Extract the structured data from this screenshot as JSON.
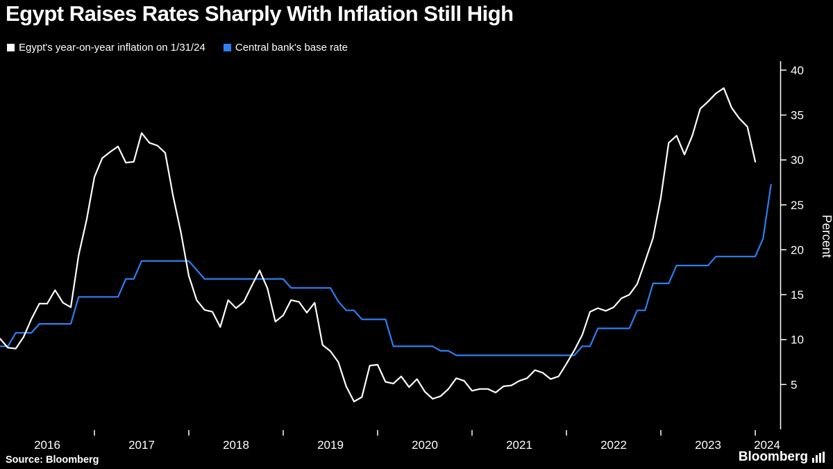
{
  "title": "Egypt Raises Rates Sharply With Inflation Still High",
  "source_label": "Source: Bloomberg",
  "brand_label": "Bloomberg",
  "colors": {
    "background": "#000000",
    "text": "#ffffff",
    "inflation_line": "#ffffff",
    "base_rate_line": "#2d7ff2"
  },
  "chart_data": {
    "type": "line",
    "title": "Egypt Raises Rates Sharply With Inflation Still High",
    "xlabel": "",
    "ylabel": "Percent",
    "xlim": [
      2016,
      2024.25
    ],
    "ylim": [
      0,
      41
    ],
    "y_ticks": [
      5,
      10,
      15,
      20,
      25,
      30,
      35,
      40
    ],
    "x_ticks": [
      2016,
      2017,
      2018,
      2019,
      2020,
      2021,
      2022,
      2023,
      2024
    ],
    "grid": false,
    "legend_position": "top-left",
    "series": [
      {
        "name": "Egypt's year-on-year inflation on 1/31/24",
        "color": "#ffffff",
        "start_year": 2016,
        "start_month": 1,
        "frequency": "monthly",
        "values": [
          10.1,
          9.1,
          9.0,
          10.3,
          12.3,
          14.0,
          14.0,
          15.5,
          14.1,
          13.6,
          19.4,
          23.3,
          28.1,
          30.2,
          30.9,
          31.5,
          29.7,
          29.8,
          33.0,
          31.9,
          31.6,
          30.8,
          26.0,
          21.9,
          17.1,
          14.4,
          13.3,
          13.1,
          11.4,
          14.4,
          13.5,
          14.2,
          16.0,
          17.7,
          15.7,
          12.0,
          12.7,
          14.4,
          14.2,
          13.0,
          14.1,
          9.4,
          8.7,
          7.5,
          4.8,
          3.1,
          3.6,
          7.1,
          7.2,
          5.3,
          5.1,
          5.9,
          4.7,
          5.6,
          4.2,
          3.4,
          3.7,
          4.5,
          5.7,
          5.4,
          4.3,
          4.5,
          4.5,
          4.1,
          4.8,
          4.9,
          5.4,
          5.7,
          6.6,
          6.3,
          5.6,
          5.9,
          7.3,
          8.8,
          10.5,
          13.1,
          13.5,
          13.2,
          13.6,
          14.6,
          15.0,
          16.2,
          18.7,
          21.3,
          25.8,
          31.9,
          32.7,
          30.6,
          32.7,
          35.7,
          36.5,
          37.4,
          38.0,
          35.8,
          34.6,
          33.7,
          29.8
        ]
      },
      {
        "name": "Central bank's base rate",
        "color": "#2d7ff2",
        "start_year": 2016,
        "start_month": 1,
        "frequency": "monthly",
        "values": [
          9.25,
          9.25,
          10.75,
          10.75,
          10.75,
          11.75,
          11.75,
          11.75,
          11.75,
          11.75,
          14.75,
          14.75,
          14.75,
          14.75,
          14.75,
          14.75,
          16.75,
          16.75,
          18.75,
          18.75,
          18.75,
          18.75,
          18.75,
          18.75,
          18.75,
          17.75,
          16.75,
          16.75,
          16.75,
          16.75,
          16.75,
          16.75,
          16.75,
          16.75,
          16.75,
          16.75,
          16.75,
          15.75,
          15.75,
          15.75,
          15.75,
          15.75,
          15.75,
          14.25,
          13.25,
          13.25,
          12.25,
          12.25,
          12.25,
          12.25,
          9.25,
          9.25,
          9.25,
          9.25,
          9.25,
          9.25,
          8.75,
          8.75,
          8.25,
          8.25,
          8.25,
          8.25,
          8.25,
          8.25,
          8.25,
          8.25,
          8.25,
          8.25,
          8.25,
          8.25,
          8.25,
          8.25,
          8.25,
          8.25,
          9.25,
          9.25,
          11.25,
          11.25,
          11.25,
          11.25,
          11.25,
          13.25,
          13.25,
          16.25,
          16.25,
          16.25,
          18.25,
          18.25,
          18.25,
          18.25,
          18.25,
          19.25,
          19.25,
          19.25,
          19.25,
          19.25,
          19.25,
          21.25,
          27.25
        ]
      }
    ]
  }
}
